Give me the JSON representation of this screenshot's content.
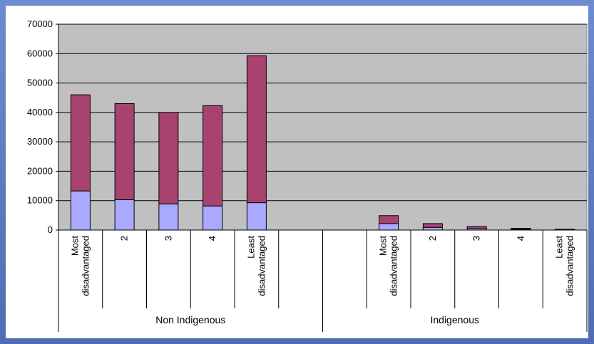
{
  "chart_data": {
    "type": "bar",
    "stacked": true,
    "title": "",
    "xlabel": "",
    "ylabel": "",
    "ylim": [
      0,
      70000
    ],
    "yticks": [
      "0",
      "10000",
      "20000",
      "30000",
      "40000",
      "50000",
      "60000",
      "70000"
    ],
    "grid": true,
    "legend": "none",
    "groups": [
      {
        "name": "Non Indigenous",
        "categories": [
          [
            "Most",
            "disadvantaged"
          ],
          [
            "2"
          ],
          [
            "3"
          ],
          [
            "4"
          ],
          [
            "Least",
            "disadvantaged"
          ],
          []
        ]
      },
      {
        "name": "Indigenous",
        "categories": [
          [],
          [
            "Most",
            "disadvantaged"
          ],
          [
            "2"
          ],
          [
            "3"
          ],
          [
            "4"
          ],
          [
            "Least",
            "disadvantaged"
          ]
        ]
      }
    ],
    "series": [
      {
        "color": "#a9a9ff",
        "values": [
          13300,
          10300,
          8900,
          8200,
          9300,
          null,
          null,
          2200,
          900,
          500,
          300,
          150
        ]
      },
      {
        "color": "#a8436f",
        "values": [
          32700,
          32700,
          31100,
          34100,
          50000,
          null,
          null,
          2700,
          1300,
          700,
          300,
          100
        ]
      }
    ]
  },
  "colors": {
    "plot_bg": "#c0c0c0",
    "frame": "#4f6fb3"
  }
}
